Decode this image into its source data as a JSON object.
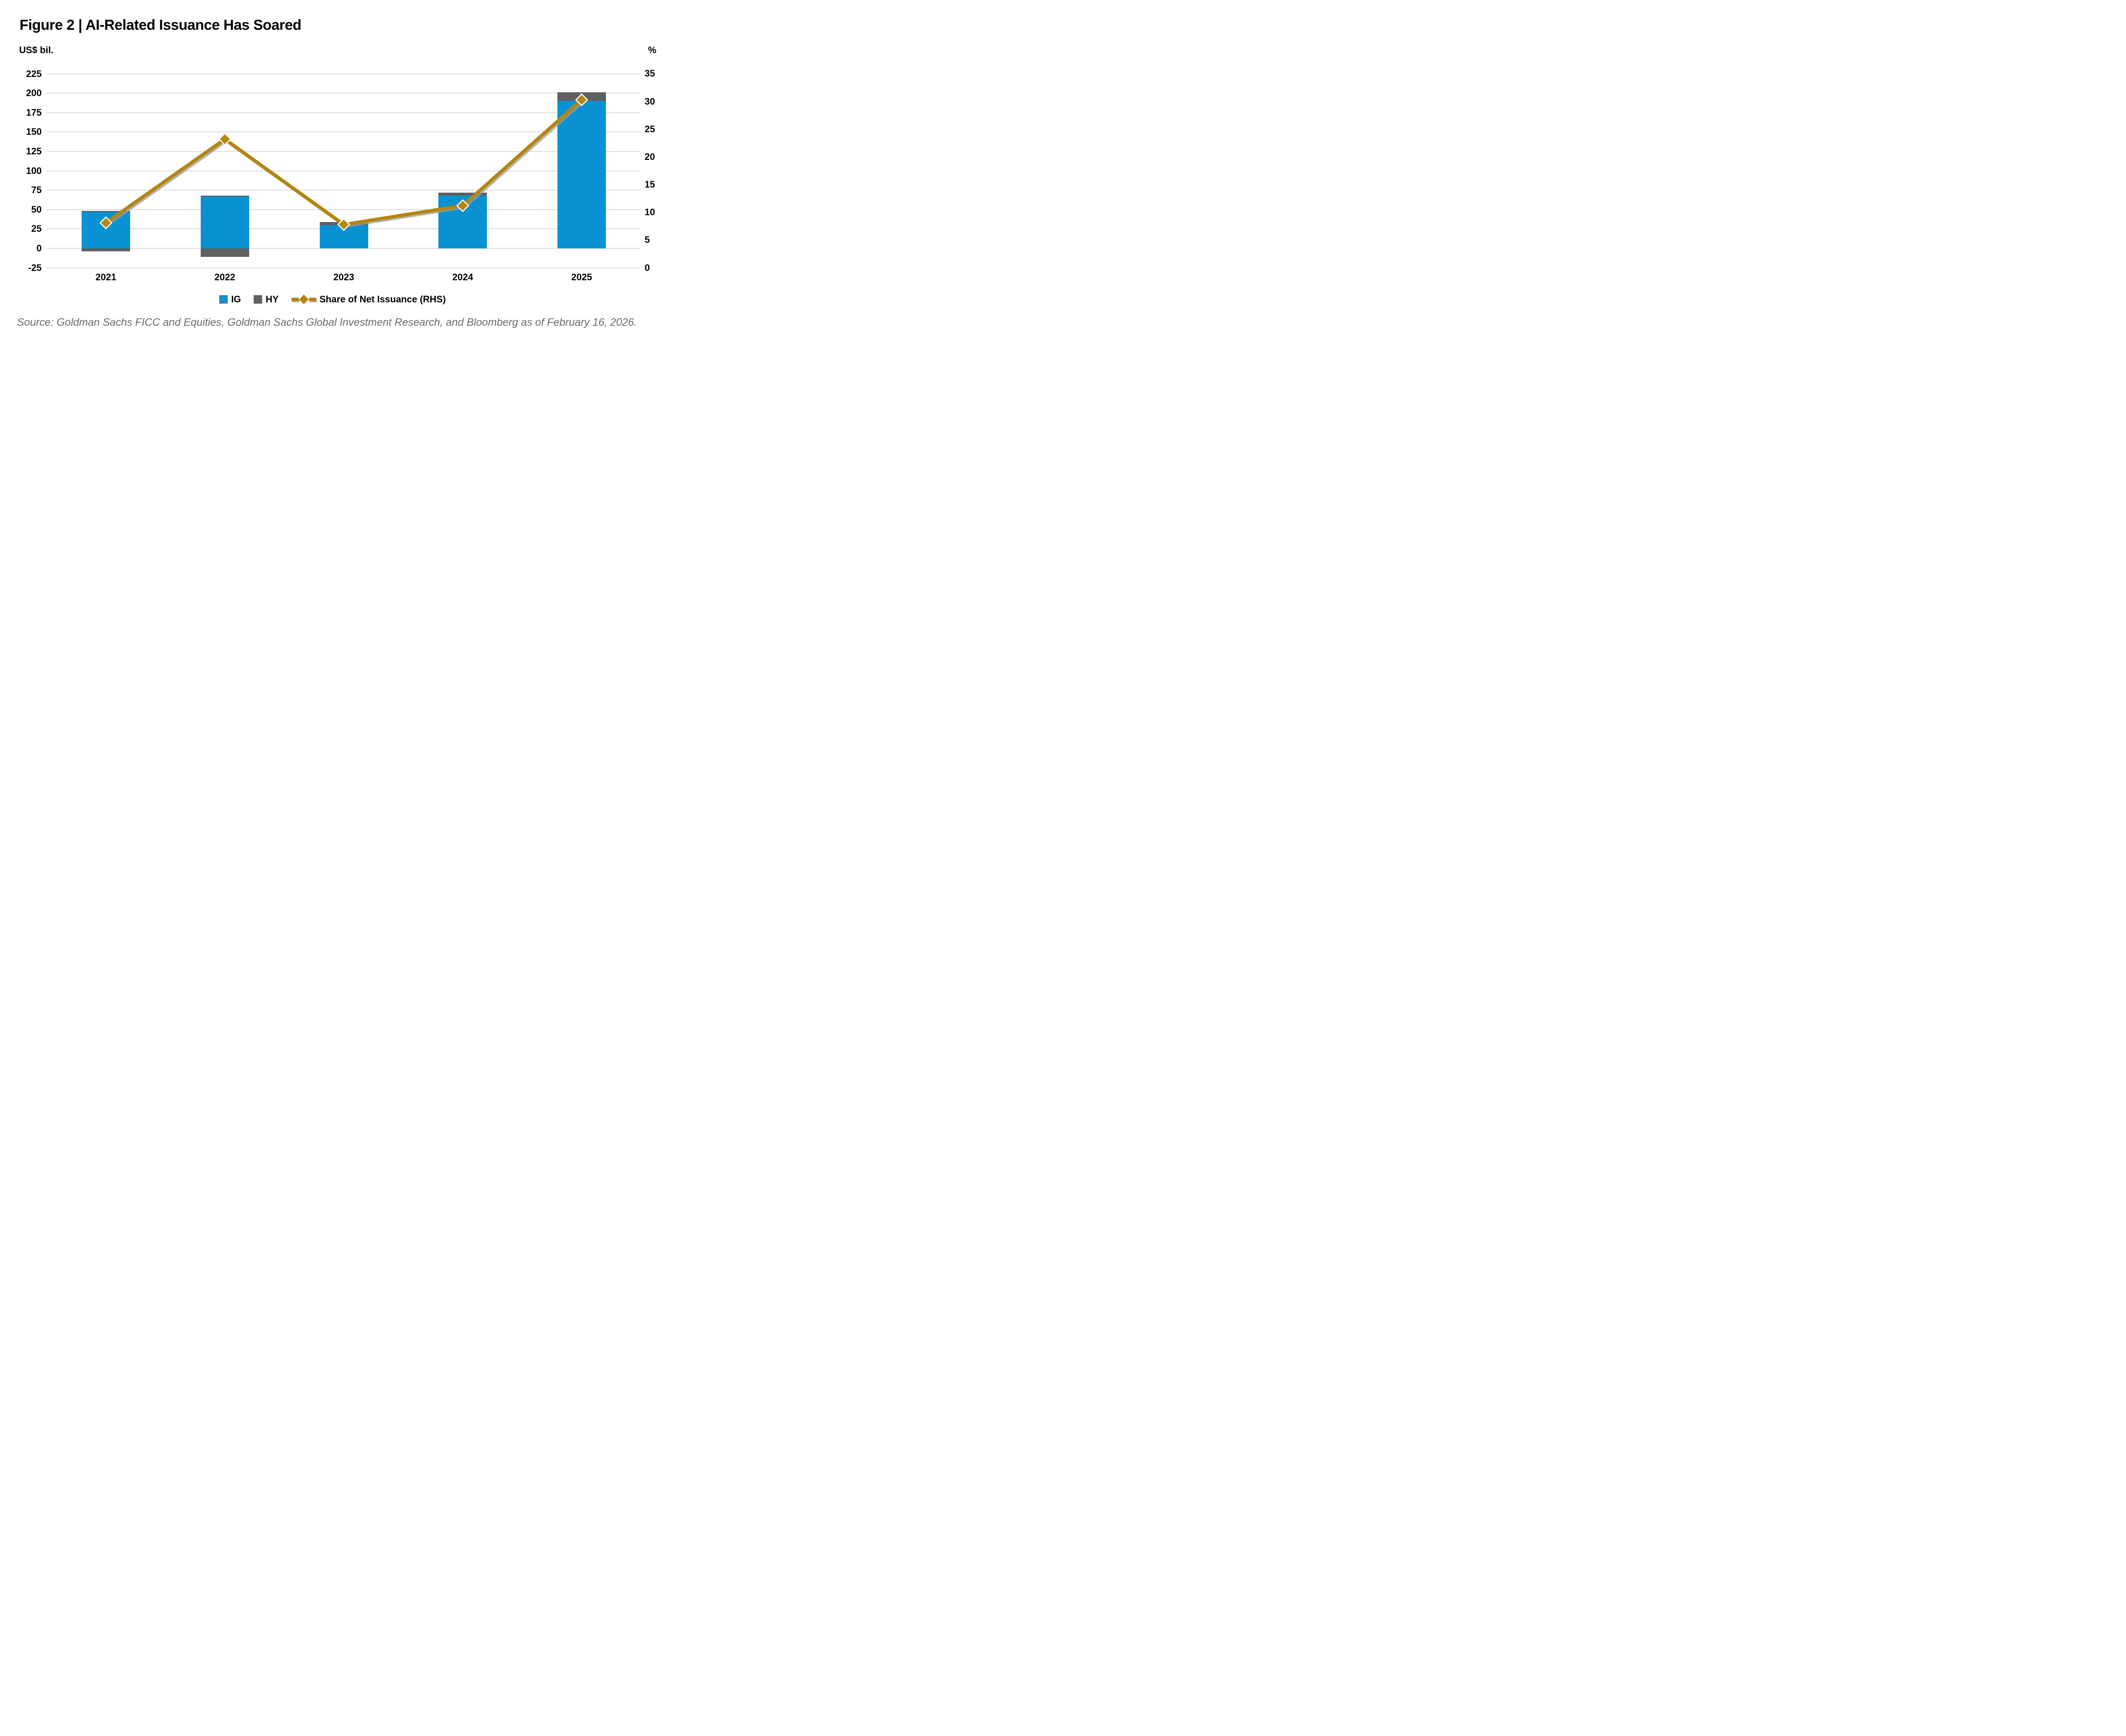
{
  "figure": {
    "title": "Figure 2 | AI-Related Issuance Has Soared",
    "source": "Source: Goldman Sachs FICC and Equities, Goldman Sachs Global Investment Research, and Bloomberg as of February 16, 2026."
  },
  "chart_data": {
    "type": "bar+line",
    "categories": [
      "2021",
      "2022",
      "2023",
      "2024",
      "2025"
    ],
    "series": [
      {
        "name": "IG",
        "type": "bar",
        "axis": "left",
        "color": "#0991D2",
        "values": [
          48,
          68,
          30,
          68,
          190
        ]
      },
      {
        "name": "HY",
        "type": "bar",
        "axis": "left",
        "color": "#5E5F61",
        "values": [
          -4,
          -11,
          4,
          4,
          11
        ]
      },
      {
        "name": "Share of Net Issuance (RHS)",
        "type": "line",
        "axis": "right",
        "color": "#B5860D",
        "values": [
          8.1,
          23.2,
          7.8,
          11.2,
          30.3
        ]
      }
    ],
    "stacked_bars": true,
    "left_axis": {
      "label": "US$ bil.",
      "ticks": [
        225,
        200,
        175,
        150,
        125,
        100,
        75,
        50,
        25,
        0,
        -25
      ],
      "range": [
        -25,
        225
      ]
    },
    "right_axis": {
      "label": "%",
      "ticks": [
        35,
        30,
        25,
        20,
        15,
        10,
        5,
        0
      ],
      "range": [
        0,
        35
      ]
    },
    "grid": true,
    "gridline_color": "#DCDCDC",
    "legend_position": "bottom"
  },
  "legend": {
    "items": [
      {
        "label": "IG",
        "swatch": "blue-square"
      },
      {
        "label": "HY",
        "swatch": "gray-square"
      },
      {
        "label": "Share of Net Issuance (RHS)",
        "swatch": "gold-dash-diamond-line"
      }
    ]
  }
}
